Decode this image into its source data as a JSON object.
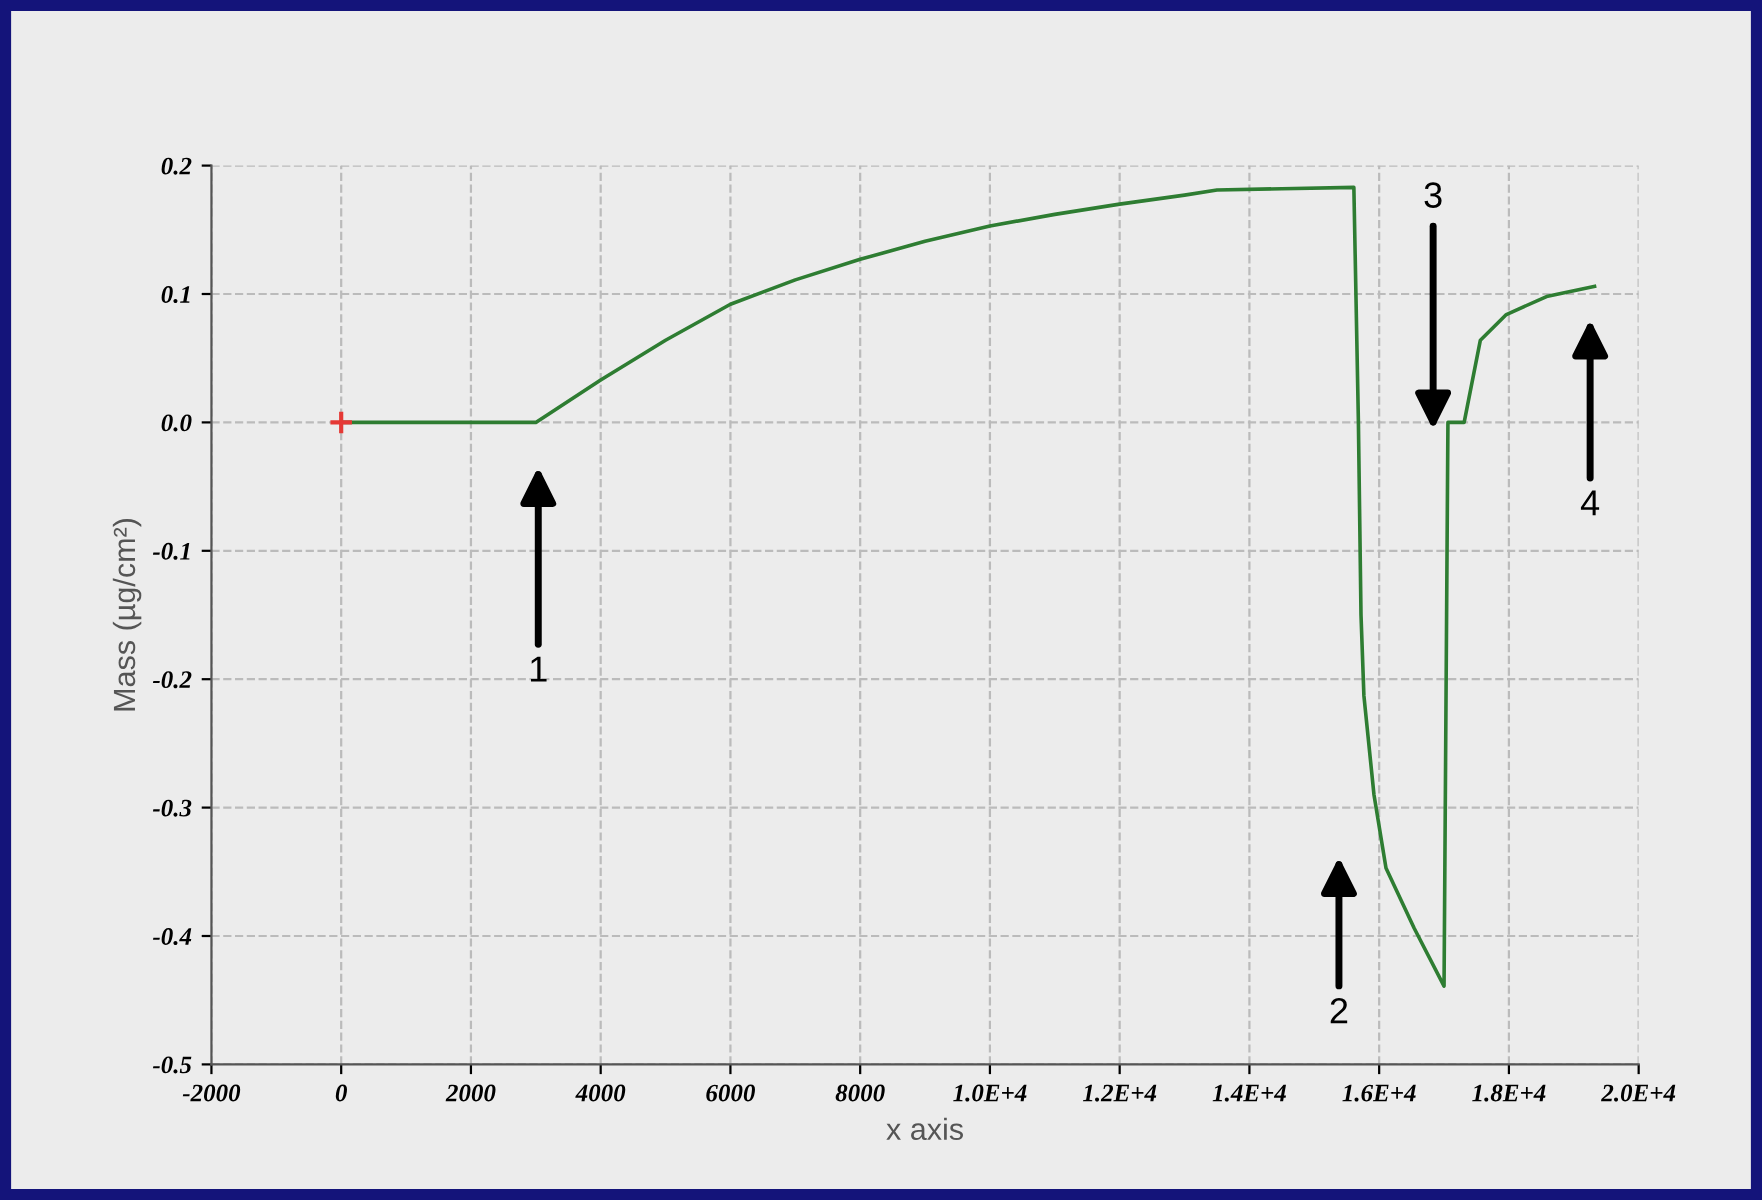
{
  "chart_data": {
    "type": "line",
    "xlabel": "x axis",
    "ylabel": "Mass (µg/cm²)",
    "xlim": [
      -2000,
      20000
    ],
    "ylim": [
      -0.5,
      0.2
    ],
    "xticks": [
      -2000,
      0,
      2000,
      4000,
      6000,
      8000,
      {
        "value": 10000,
        "label": "1.0E+4"
      },
      {
        "value": 12000,
        "label": "1.2E+4"
      },
      {
        "value": 14000,
        "label": "1.4E+4"
      },
      {
        "value": 16000,
        "label": "1.6E+4"
      },
      {
        "value": 18000,
        "label": "1.8E+4"
      },
      {
        "value": 20000,
        "label": "2.0E+4"
      }
    ],
    "yticks": [
      -0.5,
      -0.4,
      -0.3,
      -0.2,
      -0.1,
      {
        "value": 0,
        "label": "0.0"
      },
      0.1,
      0.2
    ],
    "grid": true,
    "legend": false,
    "series": [
      {
        "color": "#2e7d32",
        "marker": "none",
        "x": [
          0,
          1000,
          2000,
          3000,
          4000,
          5000,
          6000,
          7000,
          8000,
          9000,
          10000,
          11000,
          12000,
          13000,
          13500,
          14500,
          15610,
          15680,
          15720,
          15765,
          15920,
          16105,
          16540,
          17000,
          17060,
          17310,
          17560,
          17960,
          18580,
          19320
        ],
        "values": [
          0,
          0,
          0,
          0,
          0.033,
          0.064,
          0.092,
          0.111,
          0.127,
          0.141,
          0.153,
          0.162,
          0.17,
          0.177,
          0.181,
          0.182,
          0.183,
          0.0,
          -0.15,
          -0.213,
          -0.29,
          -0.347,
          -0.394,
          -0.439,
          0,
          0,
          0.064,
          0.084,
          0.098,
          0.106
        ]
      },
      {
        "type": "scatter",
        "color": "#e53935",
        "marker": "cross",
        "x": [
          0
        ],
        "values": [
          0
        ]
      }
    ],
    "annotations": [
      "1",
      "2",
      "3",
      "4"
    ]
  }
}
